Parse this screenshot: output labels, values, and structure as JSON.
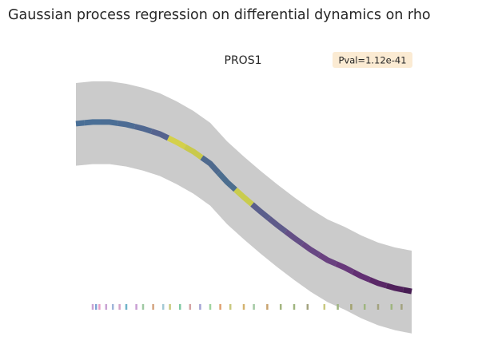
{
  "chart_data": {
    "type": "line",
    "title": "Gaussian process regression on differential dynamics on rho",
    "subtitle": "PROS1",
    "annotation": "Pval=1.12e-41",
    "x": [
      0,
      0.05,
      0.1,
      0.15,
      0.2,
      0.25,
      0.3,
      0.35,
      0.4,
      0.45,
      0.5,
      0.55,
      0.6,
      0.65,
      0.7,
      0.75,
      0.8,
      0.85,
      0.9,
      0.95,
      1
    ],
    "values": [
      0.809,
      0.815,
      0.815,
      0.806,
      0.791,
      0.771,
      0.741,
      0.706,
      0.662,
      0.594,
      0.538,
      0.485,
      0.435,
      0.388,
      0.344,
      0.306,
      0.279,
      0.247,
      0.221,
      0.203,
      0.191
    ],
    "upper": [
      0.959,
      0.965,
      0.965,
      0.956,
      0.941,
      0.921,
      0.891,
      0.856,
      0.812,
      0.744,
      0.688,
      0.635,
      0.585,
      0.538,
      0.494,
      0.456,
      0.429,
      0.397,
      0.371,
      0.353,
      0.341
    ],
    "lower": [
      0.654,
      0.66,
      0.66,
      0.651,
      0.636,
      0.616,
      0.586,
      0.551,
      0.507,
      0.439,
      0.383,
      0.33,
      0.28,
      0.233,
      0.189,
      0.151,
      0.124,
      0.092,
      0.066,
      0.048,
      0.036
    ],
    "colors": [
      "#4a6f96",
      "#4a6f96",
      "#4b6e95",
      "#4d6c94",
      "#506891",
      "#55638f",
      "#d4d04a",
      "#c9c94c",
      "#4f6a8e",
      "#4c6e8f",
      "#c9cc4e",
      "#5a5f8c",
      "#5e5a8a",
      "#644f86",
      "#684884",
      "#6a4280",
      "#68397b",
      "#622f73",
      "#5a2867",
      "#50215b",
      "#461c52"
    ],
    "band_color": "#cbcbcb",
    "rug": [
      0.05,
      0.06,
      0.07,
      0.09,
      0.11,
      0.13,
      0.15,
      0.18,
      0.2,
      0.23,
      0.26,
      0.28,
      0.31,
      0.34,
      0.37,
      0.4,
      0.43,
      0.46,
      0.5,
      0.53,
      0.57,
      0.61,
      0.65,
      0.69,
      0.74,
      0.78,
      0.82,
      0.86,
      0.9,
      0.94,
      0.97
    ],
    "rug_colors": [
      "#c9a3d4",
      "#7fa3d4",
      "#e6a0c8",
      "#c9a3d4",
      "#9fb5d9",
      "#d4a3c9",
      "#6fb3c9",
      "#c99fd4",
      "#9fc9a3",
      "#d4a37f",
      "#a3c9d4",
      "#c9c97f",
      "#7fc9a3",
      "#d4a3a3",
      "#a3a3d4",
      "#9fd49f",
      "#e0a070",
      "#c9c97f",
      "#d4b36f",
      "#a3c9a3",
      "#c9a36f",
      "#a3b57f",
      "#9fb57f",
      "#a3a37f",
      "#c9c97f",
      "#9fb57f",
      "#a3a36f",
      "#9fb57f",
      "#a3a37f",
      "#9fb57f",
      "#a3a37f"
    ],
    "xlim": [
      0,
      1
    ],
    "ylim": [
      0,
      1
    ],
    "grid": false
  }
}
